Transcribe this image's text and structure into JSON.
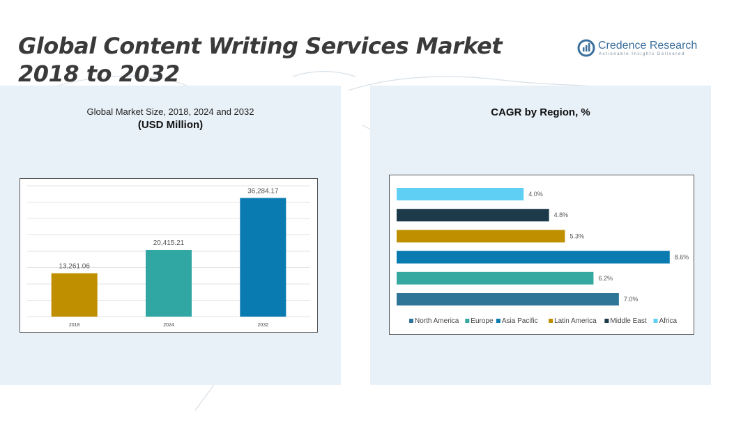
{
  "title": {
    "line1": "Global Content Writing Services Market",
    "line2": "2018 to 2032"
  },
  "brand": {
    "name": "Credence Research",
    "tagline": "Actionable Insights Delivered",
    "color": "#3b6f9c"
  },
  "left_panel": {
    "subtitle": "Global Market Size, 2018, 2024 and 2032",
    "unit": "(USD Million)"
  },
  "right_panel": {
    "title": "CAGR by Region, %"
  },
  "chart_data": [
    {
      "type": "bar",
      "categories": [
        "2018",
        "2024",
        "2032"
      ],
      "values": [
        13261.06,
        20415.21,
        36284.17
      ],
      "value_labels": [
        "13,261.06",
        "20,415.21",
        "36,284.17"
      ],
      "colors": [
        "#bf8f00",
        "#31a7a3",
        "#0a7bb1"
      ],
      "ylim": [
        0,
        40000
      ],
      "grid": true
    },
    {
      "type": "bar",
      "orientation": "horizontal",
      "categories": [
        "North America",
        "Europe",
        "Asia Pacific",
        "Latin America",
        "Middle East",
        "Africa"
      ],
      "values": [
        7.0,
        6.2,
        8.6,
        5.3,
        4.8,
        4.0
      ],
      "value_labels": [
        "7.0%",
        "6.2%",
        "8.6%",
        "5.3%",
        "4.8%",
        "4.0%"
      ],
      "colors": [
        "#2e7598",
        "#35a8a0",
        "#0a7bb1",
        "#bf8f00",
        "#1c3a4a",
        "#5fd0f3"
      ],
      "xlim": [
        0,
        9
      ],
      "legend": "bottom"
    }
  ]
}
